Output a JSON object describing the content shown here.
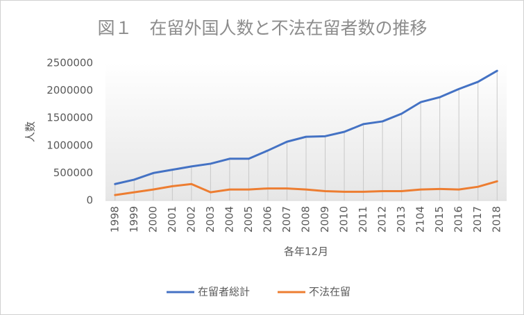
{
  "chart_data": {
    "type": "line",
    "title": "図１　在留外国人数と不法在留者数の推移",
    "y_label": "人数",
    "x_label": "各年12月",
    "categories": [
      "1998",
      "1999",
      "2000",
      "2001",
      "2002",
      "2003",
      "2004",
      "2005",
      "2006",
      "2007",
      "2008",
      "2009",
      "2010",
      "2011",
      "2012",
      "2013",
      "2104",
      "2015",
      "2016",
      "2017",
      "2018"
    ],
    "series": [
      {
        "name": "在留者総計",
        "color": "#4472c4",
        "values": [
          300000,
          380000,
          500000,
          560000,
          620000,
          670000,
          760000,
          760000,
          910000,
          1070000,
          1160000,
          1170000,
          1250000,
          1390000,
          1440000,
          1580000,
          1790000,
          1880000,
          2030000,
          2160000,
          2360000
        ]
      },
      {
        "name": "不法在留",
        "color": "#ed7d31",
        "values": [
          100000,
          150000,
          200000,
          260000,
          300000,
          150000,
          200000,
          200000,
          220000,
          220000,
          200000,
          170000,
          160000,
          160000,
          170000,
          170000,
          200000,
          210000,
          200000,
          250000,
          350000
        ]
      }
    ],
    "ylim": [
      0,
      2500000
    ],
    "yticks": [
      0,
      500000,
      1000000,
      1500000,
      2000000,
      2500000
    ],
    "drop_lines": true,
    "legend": "bottom"
  }
}
